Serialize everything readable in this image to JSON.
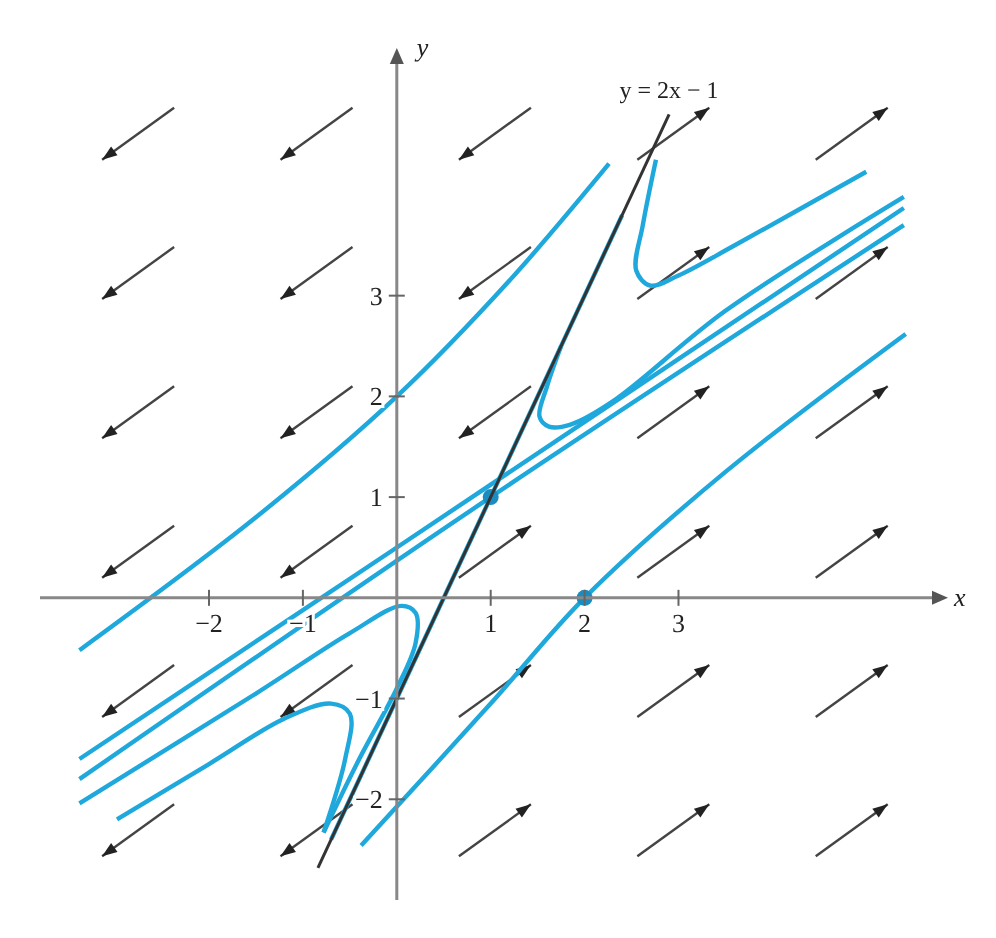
{
  "chart_data": {
    "type": "line",
    "xlabel": "x",
    "ylabel": "y",
    "xlim": [
      -3.8,
      5.7
    ],
    "ylim": [
      -3.0,
      5.3
    ],
    "xticks": [
      {
        "value": -2,
        "label": "−2"
      },
      {
        "value": -1,
        "label": "−1"
      },
      1,
      2,
      3
    ],
    "yticks": [
      {
        "value": -2,
        "label": "−2"
      },
      {
        "value": -1,
        "label": "−1"
      },
      1,
      2,
      3
    ],
    "series": [
      {
        "name": "y = 2x − 1",
        "color": "#333333",
        "x": [
          -0.84,
          2.9
        ],
        "values": [
          -2.68,
          4.8
        ]
      },
      {
        "color": "#1fa8dc",
        "x": [
          -3.38,
          -1.5,
          0,
          1.2,
          2.26
        ],
        "values": [
          -0.52,
          0.8,
          2.0,
          3.15,
          4.31
        ]
      },
      {
        "color": "#1fa8dc",
        "x": [
          2.76,
          2.62,
          2.55,
          2.7,
          3.0,
          3.6,
          5.0
        ],
        "values": [
          4.35,
          3.7,
          3.25,
          3.1,
          3.2,
          3.5,
          4.23
        ]
      },
      {
        "color": "#1fa8dc",
        "x": [
          -0.7,
          1,
          2.4
        ],
        "values": [
          -2.4,
          1,
          3.8
        ]
      },
      {
        "color": "#1fa8dc",
        "x": [
          1.75,
          1.6,
          1.52,
          1.62,
          1.85,
          2.3,
          3.5,
          5.4
        ],
        "values": [
          2.5,
          2.1,
          1.8,
          1.7,
          1.72,
          1.95,
          2.85,
          3.98
        ]
      },
      {
        "color": "#1fa8dc",
        "x": [
          -3.38,
          0,
          5.4
        ],
        "values": [
          -1.6,
          0.5,
          3.87
        ]
      },
      {
        "color": "#1fa8dc",
        "x": [
          -3.38,
          1,
          5.4
        ],
        "values": [
          -1.8,
          1,
          3.7
        ]
      },
      {
        "color": "#1fa8dc",
        "x": [
          -3.38,
          -1.5,
          -0.5,
          0.05,
          0.2,
          0.2,
          0.0,
          -0.4,
          -0.78
        ],
        "values": [
          -2.04,
          -0.95,
          -0.35,
          -0.08,
          -0.15,
          -0.45,
          -0.9,
          -1.6,
          -2.33
        ]
      },
      {
        "color": "#1fa8dc",
        "x": [
          -2.98,
          -2,
          -1.2,
          -0.7,
          -0.5,
          -0.55,
          -0.78
        ],
        "values": [
          -2.2,
          -1.65,
          -1.2,
          -1.05,
          -1.15,
          -1.6,
          -2.33
        ]
      },
      {
        "color": "#1fa8dc",
        "x": [
          -0.38,
          1,
          2,
          3.5,
          5.42
        ],
        "values": [
          -2.46,
          -1.05,
          0,
          1.25,
          2.62
        ]
      },
      {
        "type": "scatter",
        "marker": "circle",
        "color": "#1a8cc0",
        "x": [
          1,
          2
        ],
        "values": [
          1,
          0
        ]
      }
    ]
  }
}
